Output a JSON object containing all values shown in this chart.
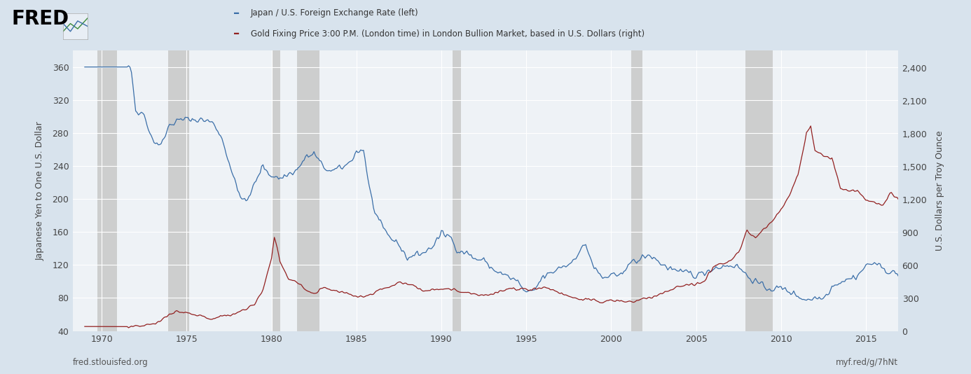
{
  "title_blue": "Japan / U.S. Foreign Exchange Rate (left)",
  "title_red": "Gold Fixing Price 3:00 P.M. (London time) in London Bullion Market, based in U.S. Dollars (right)",
  "ylabel_left": "Japanese Yen to One U.S. Dollar",
  "ylabel_right": "U.S. Dollars per Troy Ounce",
  "xlabel_left": "fred.stlouisfed.org",
  "xlabel_right": "myf.red/g/7hNt",
  "bg_outer": "#d8e3ed",
  "bg_plot": "#eef2f6",
  "color_blue": "#3a6ea8",
  "color_red": "#922020",
  "ylim_left": [
    40,
    380
  ],
  "ylim_right": [
    0,
    2560
  ],
  "yticks_left": [
    40,
    80,
    120,
    160,
    200,
    240,
    280,
    320,
    360
  ],
  "yticks_right": [
    0,
    300,
    600,
    900,
    1200,
    1500,
    1800,
    2100,
    2400
  ],
  "recession_bands": [
    [
      1969.75,
      1970.92
    ],
    [
      1973.92,
      1975.17
    ],
    [
      1980.0,
      1980.5
    ],
    [
      1981.5,
      1982.83
    ],
    [
      1990.67,
      1991.17
    ],
    [
      2001.17,
      2001.83
    ],
    [
      2007.92,
      2009.5
    ]
  ],
  "xmin": 1968.3,
  "xmax": 2016.9,
  "xticks": [
    1970,
    1975,
    1980,
    1985,
    1990,
    1995,
    2000,
    2005,
    2010,
    2015
  ]
}
